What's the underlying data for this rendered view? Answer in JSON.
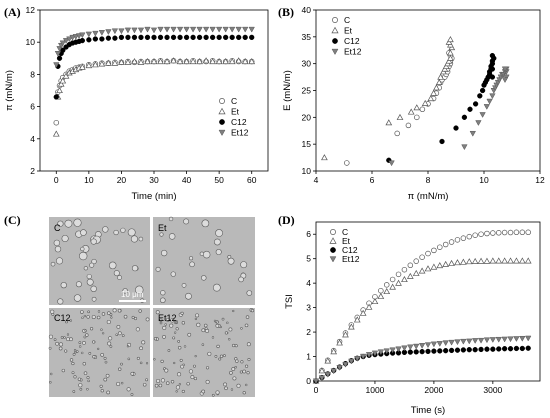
{
  "panels": {
    "a": {
      "label": "(A)"
    },
    "b": {
      "label": "(B)"
    },
    "c": {
      "label": "(C)"
    },
    "d": {
      "label": "(D)"
    }
  },
  "micrographs": {
    "labels": [
      "C",
      "Et",
      "C12",
      "Et12"
    ],
    "scale_bar": "10 μm",
    "colors": {
      "bg": "#b9b9b9",
      "cell_edge": "#5a5a5a"
    }
  },
  "legend_markers": {
    "C": "open-circle",
    "Et": "open-triangle",
    "C12": "filled-circle",
    "Et12": "filled-triangle-down"
  },
  "colors": {
    "filled_circle": "#000000",
    "filled_triangle": "#7f7f7f",
    "open": "#ffffff",
    "stroke": "#555555"
  },
  "chart_data": [
    {
      "id": "A",
      "type": "scatter",
      "xlabel": "Time (min)",
      "ylabel": "π (mN/m)",
      "xlim": [
        -5,
        65
      ],
      "ylim": [
        2,
        12
      ],
      "xticks": [
        "0",
        "10",
        "20",
        "30",
        "40",
        "50",
        "60"
      ],
      "yticks": [
        "2",
        "4",
        "6",
        "8",
        "10",
        "12"
      ],
      "legend_position": "bottom-right",
      "series": [
        {
          "name": "C",
          "marker": "open-circle",
          "x": [
            0,
            0.5,
            1,
            1.5,
            2,
            3,
            4,
            5,
            6,
            7,
            8,
            10,
            12,
            14,
            16,
            18,
            20,
            22,
            24,
            26,
            28,
            30,
            32,
            34,
            36,
            38,
            40,
            42,
            44,
            46,
            48,
            50,
            52,
            54,
            56,
            58,
            60
          ],
          "y": [
            5.0,
            6.9,
            7.3,
            7.6,
            7.8,
            8.0,
            8.2,
            8.3,
            8.4,
            8.45,
            8.5,
            8.6,
            8.65,
            8.7,
            8.7,
            8.75,
            8.75,
            8.8,
            8.75,
            8.8,
            8.8,
            8.8,
            8.85,
            8.8,
            8.85,
            8.8,
            8.8,
            8.85,
            8.8,
            8.8,
            8.85,
            8.8,
            8.8,
            8.85,
            8.8,
            8.8,
            8.8
          ]
        },
        {
          "name": "Et",
          "marker": "open-triangle",
          "x": [
            0,
            0.5,
            1,
            1.5,
            2,
            3,
            4,
            5,
            6,
            7,
            8,
            10,
            12,
            14,
            16,
            18,
            20,
            22,
            24,
            26,
            28,
            30,
            32,
            34,
            36,
            38,
            40,
            42,
            44,
            46,
            48,
            50,
            52,
            54,
            56,
            58,
            60
          ],
          "y": [
            4.3,
            6.6,
            7.0,
            7.4,
            7.6,
            7.9,
            8.1,
            8.2,
            8.3,
            8.4,
            8.45,
            8.55,
            8.6,
            8.65,
            8.7,
            8.7,
            8.75,
            8.75,
            8.8,
            8.75,
            8.8,
            8.8,
            8.8,
            8.8,
            8.85,
            8.8,
            8.8,
            8.8,
            8.8,
            8.85,
            8.8,
            8.8,
            8.8,
            8.8,
            8.85,
            8.8,
            8.8
          ]
        },
        {
          "name": "C12",
          "marker": "filled-circle",
          "x": [
            0,
            0.5,
            1,
            1.5,
            2,
            3,
            4,
            5,
            6,
            7,
            8,
            10,
            12,
            14,
            16,
            18,
            20,
            22,
            24,
            26,
            28,
            30,
            32,
            34,
            36,
            38,
            40,
            42,
            44,
            46,
            48,
            50,
            52,
            54,
            56,
            58,
            60
          ],
          "y": [
            6.6,
            8.5,
            9.0,
            9.3,
            9.5,
            9.7,
            9.85,
            9.95,
            10.0,
            10.05,
            10.1,
            10.15,
            10.2,
            10.2,
            10.25,
            10.25,
            10.3,
            10.3,
            10.3,
            10.3,
            10.3,
            10.3,
            10.3,
            10.3,
            10.3,
            10.3,
            10.3,
            10.3,
            10.3,
            10.3,
            10.3,
            10.3,
            10.3,
            10.3,
            10.3,
            10.3,
            10.3
          ]
        },
        {
          "name": "Et12",
          "marker": "filled-triangle-down",
          "x": [
            0,
            0.5,
            1,
            1.5,
            2,
            3,
            4,
            5,
            6,
            7,
            8,
            10,
            12,
            14,
            16,
            18,
            20,
            22,
            24,
            26,
            28,
            30,
            32,
            34,
            36,
            38,
            40,
            42,
            44,
            46,
            48,
            50,
            52,
            54,
            56,
            58,
            60
          ],
          "y": [
            8.6,
            9.3,
            9.6,
            9.8,
            9.95,
            10.1,
            10.2,
            10.3,
            10.35,
            10.4,
            10.45,
            10.5,
            10.55,
            10.6,
            10.65,
            10.7,
            10.7,
            10.75,
            10.75,
            10.75,
            10.8,
            10.75,
            10.8,
            10.8,
            10.8,
            10.8,
            10.8,
            10.8,
            10.8,
            10.8,
            10.8,
            10.8,
            10.8,
            10.8,
            10.8,
            10.8,
            10.8
          ]
        }
      ]
    },
    {
      "id": "B",
      "type": "scatter",
      "xlabel": "π (mN/m)",
      "ylabel": "E (mN/m)",
      "xlim": [
        4,
        12
      ],
      "ylim": [
        10,
        40
      ],
      "xticks": [
        "4",
        "6",
        "8",
        "10",
        "12"
      ],
      "yticks": [
        "10",
        "15",
        "20",
        "25",
        "30",
        "35",
        "40"
      ],
      "legend_position": "top-left",
      "series": [
        {
          "name": "C",
          "marker": "open-circle",
          "x": [
            5.1,
            6.9,
            7.3,
            7.6,
            7.8,
            8.0,
            8.2,
            8.3,
            8.4,
            8.45,
            8.5,
            8.6,
            8.65,
            8.7,
            8.7,
            8.75,
            8.8,
            8.8,
            8.85,
            8.8,
            8.75
          ],
          "y": [
            11.5,
            17.0,
            18.5,
            20.0,
            21.5,
            22.5,
            23.5,
            24.5,
            25.5,
            26.5,
            27.0,
            27.5,
            28.0,
            28.5,
            29.0,
            29.5,
            30.0,
            30.5,
            31.0,
            31.5,
            32.0
          ]
        },
        {
          "name": "Et",
          "marker": "open-triangle",
          "x": [
            4.3,
            6.6,
            7.0,
            7.4,
            7.6,
            7.9,
            8.1,
            8.2,
            8.3,
            8.4,
            8.45,
            8.55,
            8.6,
            8.65,
            8.7,
            8.75,
            8.8,
            8.8,
            8.85,
            8.8,
            8.75,
            8.8
          ],
          "y": [
            12.5,
            19.0,
            20.0,
            21.0,
            21.8,
            22.6,
            23.5,
            24.5,
            25.5,
            26.5,
            27.5,
            28.5,
            29.0,
            29.5,
            30.0,
            30.5,
            31.0,
            32.0,
            33.0,
            33.5,
            34.0,
            34.5
          ]
        },
        {
          "name": "C12",
          "marker": "filled-circle",
          "x": [
            6.6,
            8.5,
            9.0,
            9.3,
            9.5,
            9.7,
            9.85,
            9.95,
            10.0,
            10.05,
            10.1,
            10.15,
            10.2,
            10.2,
            10.25,
            10.25,
            10.3,
            10.3,
            10.35,
            10.3,
            10.3,
            10.3
          ],
          "y": [
            12.0,
            15.5,
            18.0,
            20.0,
            21.5,
            22.5,
            24.0,
            25.0,
            26.0,
            26.5,
            27.0,
            27.5,
            28.0,
            28.5,
            29.0,
            29.5,
            30.0,
            30.5,
            31.0,
            31.5,
            29.0,
            27.5
          ]
        },
        {
          "name": "Et12",
          "marker": "filled-triangle-down",
          "x": [
            6.7,
            9.3,
            9.6,
            9.8,
            9.95,
            10.1,
            10.2,
            10.3,
            10.35,
            10.4,
            10.45,
            10.5,
            10.55,
            10.6,
            10.65,
            10.7,
            10.75,
            10.8,
            10.8,
            10.75,
            10.8,
            10.75
          ],
          "y": [
            11.5,
            14.5,
            17.0,
            19.0,
            20.5,
            22.0,
            23.0,
            24.0,
            25.0,
            25.5,
            26.0,
            26.5,
            27.0,
            27.5,
            28.0,
            28.0,
            28.5,
            28.5,
            29.0,
            29.0,
            27.5,
            27.0
          ]
        }
      ]
    },
    {
      "id": "D",
      "type": "scatter",
      "xlabel": "Time (s)",
      "ylabel": "TSI",
      "xlim": [
        0,
        3800
      ],
      "ylim": [
        0,
        6.5
      ],
      "xticks": [
        "0",
        "1000",
        "2000",
        "3000"
      ],
      "yticks": [
        "0",
        "1",
        "2",
        "3",
        "4",
        "5",
        "6"
      ],
      "legend_position": "top-left",
      "series": [
        {
          "name": "C",
          "marker": "open-circle",
          "x": [
            0,
            100,
            200,
            300,
            400,
            500,
            600,
            700,
            800,
            900,
            1000,
            1100,
            1200,
            1300,
            1400,
            1500,
            1600,
            1700,
            1800,
            1900,
            2000,
            2100,
            2200,
            2300,
            2400,
            2500,
            2600,
            2700,
            2800,
            2900,
            3000,
            3100,
            3200,
            3300,
            3400,
            3500,
            3600
          ],
          "y": [
            0.0,
            0.43,
            0.85,
            1.24,
            1.61,
            1.96,
            2.29,
            2.6,
            2.9,
            3.18,
            3.44,
            3.69,
            3.93,
            4.15,
            4.36,
            4.55,
            4.73,
            4.9,
            5.06,
            5.21,
            5.34,
            5.47,
            5.58,
            5.68,
            5.77,
            5.84,
            5.9,
            5.96,
            6.0,
            6.03,
            6.05,
            6.06,
            6.07,
            6.07,
            6.08,
            6.08,
            6.08
          ]
        },
        {
          "name": "Et",
          "marker": "open-triangle",
          "x": [
            0,
            100,
            200,
            300,
            400,
            500,
            600,
            700,
            800,
            900,
            1000,
            1100,
            1200,
            1300,
            1400,
            1500,
            1600,
            1700,
            1800,
            1900,
            2000,
            2100,
            2200,
            2300,
            2400,
            2500,
            2600,
            2700,
            2800,
            2900,
            3000,
            3100,
            3200,
            3300,
            3400,
            3500,
            3600
          ],
          "y": [
            0.0,
            0.42,
            0.82,
            1.2,
            1.56,
            1.89,
            2.21,
            2.5,
            2.77,
            3.02,
            3.25,
            3.46,
            3.66,
            3.84,
            4.0,
            4.15,
            4.28,
            4.4,
            4.5,
            4.59,
            4.66,
            4.72,
            4.77,
            4.81,
            4.84,
            4.86,
            4.88,
            4.89,
            4.9,
            4.9,
            4.91,
            4.91,
            4.91,
            4.91,
            4.91,
            4.91,
            4.91
          ]
        },
        {
          "name": "C12",
          "marker": "filled-circle",
          "x": [
            0,
            100,
            200,
            300,
            400,
            500,
            600,
            700,
            800,
            900,
            1000,
            1100,
            1200,
            1300,
            1400,
            1500,
            1600,
            1700,
            1800,
            1900,
            2000,
            2100,
            2200,
            2300,
            2400,
            2500,
            2600,
            2700,
            2800,
            2900,
            3000,
            3100,
            3200,
            3300,
            3400,
            3500,
            3600
          ],
          "y": [
            0.0,
            0.14,
            0.29,
            0.43,
            0.57,
            0.71,
            0.83,
            0.93,
            1.0,
            1.05,
            1.08,
            1.1,
            1.12,
            1.14,
            1.15,
            1.17,
            1.18,
            1.19,
            1.2,
            1.21,
            1.22,
            1.23,
            1.24,
            1.25,
            1.26,
            1.27,
            1.28,
            1.28,
            1.29,
            1.3,
            1.3,
            1.31,
            1.32,
            1.32,
            1.33,
            1.33,
            1.34
          ]
        },
        {
          "name": "Et12",
          "marker": "filled-triangle-down",
          "x": [
            0,
            100,
            200,
            300,
            400,
            500,
            600,
            700,
            800,
            900,
            1000,
            1100,
            1200,
            1300,
            1400,
            1500,
            1600,
            1700,
            1800,
            1900,
            2000,
            2100,
            2200,
            2300,
            2400,
            2500,
            2600,
            2700,
            2800,
            2900,
            3000,
            3100,
            3200,
            3300,
            3400,
            3500,
            3600
          ],
          "y": [
            0.0,
            0.13,
            0.27,
            0.41,
            0.55,
            0.68,
            0.81,
            0.92,
            1.01,
            1.08,
            1.14,
            1.19,
            1.23,
            1.27,
            1.31,
            1.35,
            1.39,
            1.42,
            1.45,
            1.48,
            1.51,
            1.53,
            1.56,
            1.58,
            1.6,
            1.62,
            1.63,
            1.65,
            1.66,
            1.68,
            1.69,
            1.7,
            1.71,
            1.72,
            1.73,
            1.74,
            1.75
          ]
        }
      ]
    }
  ]
}
